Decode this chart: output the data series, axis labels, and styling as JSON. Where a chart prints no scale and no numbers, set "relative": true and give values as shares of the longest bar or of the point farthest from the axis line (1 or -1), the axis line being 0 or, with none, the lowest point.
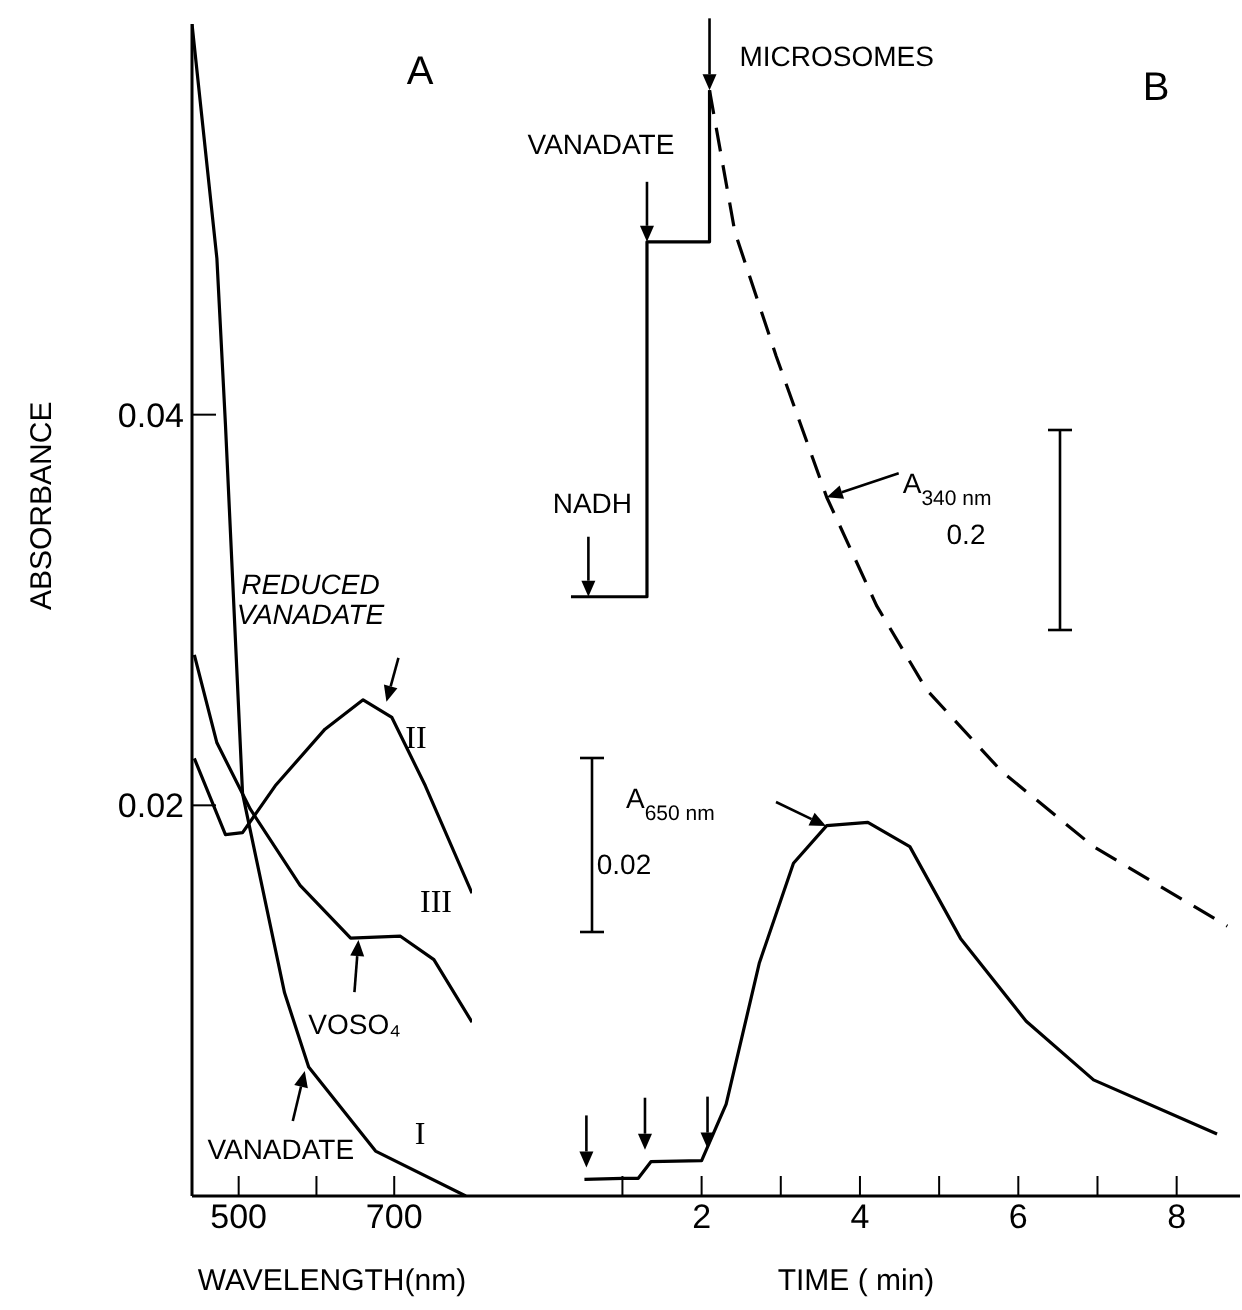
{
  "chart_data": [
    {
      "type": "line",
      "xlabel": "WAVELENGTH(nm)",
      "ylabel": "ABSORBANCE",
      "xlim": [
        440,
        800
      ],
      "ylim": [
        0,
        0.06
      ],
      "xticks": [
        500,
        {
          "value": 600,
          "label": null
        },
        700
      ],
      "yticks": [
        0.02,
        0.04
      ],
      "annotations": [
        "A",
        {
          "text": "REDUCED VANADATE",
          "x": 690,
          "y": 0.0253
        },
        {
          "text": "VOSO₄",
          "x": 654,
          "y": 0.0131
        },
        {
          "text": "VANADATE",
          "x": 585,
          "y": 0.0064
        }
      ],
      "series": [
        {
          "name": "I",
          "color": "#000000",
          "x": [
            440,
            472,
            483,
            505,
            559,
            590,
            676,
            792
          ],
          "values": [
            0.06,
            0.048,
            0.0395,
            0.0206,
            0.0104,
            0.0066,
            0.0023,
            0
          ]
        },
        {
          "name": "II",
          "color": "#000000",
          "x": [
            443,
            483,
            505,
            547,
            611,
            660,
            697,
            740,
            800
          ],
          "values": [
            0.0224,
            0.0185,
            0.0186,
            0.021,
            0.0239,
            0.0254,
            0.0245,
            0.021,
            0.0155
          ]
        },
        {
          "name": "III",
          "color": "#000000",
          "x": [
            443,
            472,
            515,
            579,
            644,
            708,
            751,
            800
          ],
          "values": [
            0.0277,
            0.0232,
            0.0198,
            0.0159,
            0.0132,
            0.0133,
            0.0121,
            0.0089
          ]
        }
      ]
    },
    {
      "type": "line",
      "xlabel": "TIME ( min)",
      "relative": true,
      "tick_labels": "x",
      "xlim": [
        -0.9,
        8.8
      ],
      "xticks": [
        {
          "value": 1,
          "label": null
        },
        2,
        {
          "value": 3,
          "label": null
        },
        4,
        {
          "value": 5,
          "label": null
        },
        6,
        {
          "value": 7,
          "label": null
        },
        8
      ],
      "annotations": [
        "B",
        {
          "text": "MICROSOMES",
          "x": 2.1,
          "y": 1.0
        },
        {
          "text": "VANADATE",
          "x": 1.31,
          "y": 0.863
        },
        {
          "text": "NADH",
          "x": 0.57,
          "y": 0.542
        },
        {
          "text": "A$_{340 nm}$",
          "x": 3.58,
          "y": 0.632
        },
        "0.2",
        "A$_{650 nm}$",
        "0.02"
      ],
      "series": [
        {
          "color": "#000000",
          "line_style": "solid",
          "x": [
            0.35,
            1.31,
            1.31,
            2.1,
            2.1
          ],
          "values": [
            0.542,
            0.542,
            0.863,
            0.863,
            1.0
          ]
        },
        {
          "color": "#000000",
          "line_style": "dashed",
          "x": [
            2.1,
            2.42,
            2.94,
            3.58,
            4.21,
            4.84,
            5.79,
            6.95,
            8.64
          ],
          "values": [
            1.0,
            0.872,
            0.76,
            0.632,
            0.534,
            0.458,
            0.384,
            0.316,
            0.244
          ]
        },
        {
          "color": "#000000",
          "line_style": "solid",
          "x": [
            0.52,
            1.0,
            1.2,
            1.36,
            2.0,
            2.31,
            2.73,
            3.16,
            3.58,
            4.1,
            4.63,
            5.27,
            6.1,
            6.95,
            8.51
          ],
          "values": [
            0.015,
            0.016,
            0.016,
            0.031,
            0.032,
            0.083,
            0.211,
            0.301,
            0.335,
            0.338,
            0.316,
            0.233,
            0.158,
            0.105,
            0.056
          ]
        }
      ]
    }
  ]
}
